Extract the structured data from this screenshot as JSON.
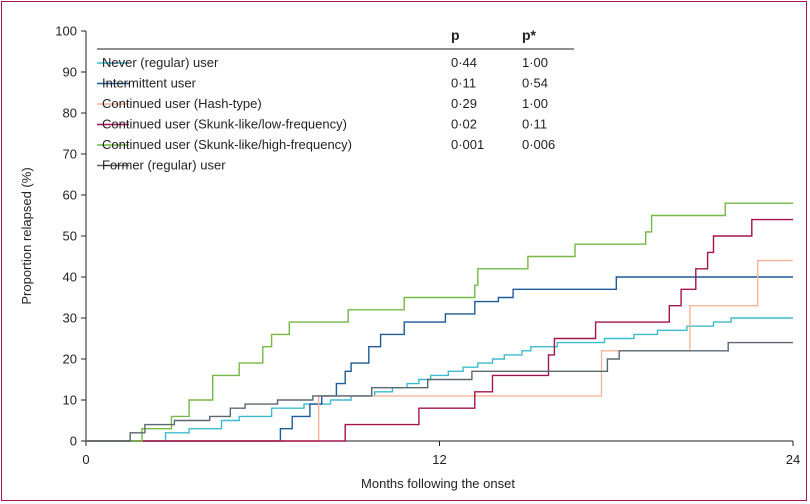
{
  "chart_data": {
    "type": "line",
    "step": true,
    "xlabel": "Months following the onset",
    "ylabel": "Proportion relapsed (%)",
    "xlim": [
      0,
      24
    ],
    "ylim": [
      0,
      100
    ],
    "xticks": [
      0,
      12,
      24
    ],
    "yticks": [
      0,
      10,
      20,
      30,
      40,
      50,
      60,
      70,
      80,
      90,
      100
    ],
    "legend_position": "top",
    "legend_columns": [
      "p",
      "p*"
    ],
    "frame_color": "#a8135f",
    "series": [
      {
        "name": "Never (regular) user",
        "color": "#3bbcd0",
        "p": "0·44",
        "p_star": "1·00",
        "points": [
          [
            0,
            0
          ],
          [
            2.7,
            0
          ],
          [
            2.7,
            2
          ],
          [
            3.5,
            2
          ],
          [
            3.5,
            3
          ],
          [
            4.6,
            3
          ],
          [
            4.6,
            5
          ],
          [
            5.2,
            5
          ],
          [
            5.2,
            6
          ],
          [
            6.3,
            6
          ],
          [
            6.3,
            8
          ],
          [
            7.4,
            8
          ],
          [
            7.4,
            9
          ],
          [
            8.3,
            9
          ],
          [
            8.3,
            10
          ],
          [
            9.0,
            10
          ],
          [
            9.0,
            11
          ],
          [
            9.8,
            11
          ],
          [
            9.8,
            12
          ],
          [
            10.4,
            12
          ],
          [
            10.4,
            13
          ],
          [
            10.9,
            13
          ],
          [
            10.9,
            14
          ],
          [
            11.3,
            14
          ],
          [
            11.3,
            15
          ],
          [
            11.7,
            15
          ],
          [
            11.7,
            16
          ],
          [
            12.3,
            16
          ],
          [
            12.3,
            17
          ],
          [
            12.8,
            17
          ],
          [
            12.8,
            18
          ],
          [
            13.3,
            18
          ],
          [
            13.3,
            19
          ],
          [
            13.8,
            19
          ],
          [
            13.8,
            20
          ],
          [
            14.2,
            20
          ],
          [
            14.2,
            21
          ],
          [
            14.8,
            21
          ],
          [
            14.8,
            22
          ],
          [
            15.1,
            22
          ],
          [
            15.1,
            23
          ],
          [
            16.0,
            23
          ],
          [
            16.0,
            24
          ],
          [
            17.6,
            24
          ],
          [
            17.6,
            25
          ],
          [
            18.6,
            25
          ],
          [
            18.6,
            26
          ],
          [
            19.4,
            26
          ],
          [
            19.4,
            27
          ],
          [
            20.4,
            27
          ],
          [
            20.4,
            28
          ],
          [
            21.3,
            28
          ],
          [
            21.3,
            29
          ],
          [
            21.9,
            29
          ],
          [
            21.9,
            30
          ],
          [
            24,
            30
          ]
        ]
      },
      {
        "name": "Intermittent user",
        "color": "#1c5a99",
        "p": "0·11",
        "p_star": "0·54",
        "points": [
          [
            0,
            0
          ],
          [
            6.6,
            0
          ],
          [
            6.6,
            3
          ],
          [
            7.0,
            3
          ],
          [
            7.0,
            6
          ],
          [
            7.6,
            6
          ],
          [
            7.6,
            9
          ],
          [
            8.0,
            9
          ],
          [
            8.0,
            11
          ],
          [
            8.5,
            11
          ],
          [
            8.5,
            14
          ],
          [
            8.8,
            14
          ],
          [
            8.8,
            17
          ],
          [
            9.0,
            17
          ],
          [
            9.0,
            19
          ],
          [
            9.6,
            19
          ],
          [
            9.6,
            23
          ],
          [
            10.0,
            23
          ],
          [
            10.0,
            26
          ],
          [
            10.8,
            26
          ],
          [
            10.8,
            29
          ],
          [
            12.2,
            29
          ],
          [
            12.2,
            31
          ],
          [
            13.2,
            31
          ],
          [
            13.2,
            34
          ],
          [
            14.0,
            34
          ],
          [
            14.0,
            35
          ],
          [
            14.5,
            35
          ],
          [
            14.5,
            37
          ],
          [
            18.0,
            37
          ],
          [
            18.0,
            40
          ],
          [
            24,
            40
          ]
        ]
      },
      {
        "name": "Continued user (Hash-type)",
        "color": "#f7b39b",
        "p": "0·29",
        "p_star": "1·00",
        "points": [
          [
            0,
            0
          ],
          [
            7.9,
            0
          ],
          [
            7.9,
            11
          ],
          [
            17.5,
            11
          ],
          [
            17.5,
            22
          ],
          [
            20.5,
            22
          ],
          [
            20.5,
            33
          ],
          [
            22.8,
            33
          ],
          [
            22.8,
            44
          ],
          [
            24,
            44
          ]
        ]
      },
      {
        "name": "Continued user (Skunk-like/low-frequency)",
        "color": "#a4134e",
        "p": "0·02",
        "p_star": "0·11",
        "points": [
          [
            0,
            0
          ],
          [
            8.8,
            0
          ],
          [
            8.8,
            4
          ],
          [
            11.3,
            4
          ],
          [
            11.3,
            8
          ],
          [
            13.2,
            8
          ],
          [
            13.2,
            12
          ],
          [
            13.8,
            12
          ],
          [
            13.8,
            16
          ],
          [
            15.7,
            16
          ],
          [
            15.7,
            21
          ],
          [
            15.9,
            21
          ],
          [
            15.9,
            25
          ],
          [
            17.3,
            25
          ],
          [
            17.3,
            29
          ],
          [
            19.8,
            29
          ],
          [
            19.8,
            33
          ],
          [
            20.2,
            33
          ],
          [
            20.2,
            37
          ],
          [
            20.7,
            37
          ],
          [
            20.7,
            42
          ],
          [
            21.1,
            42
          ],
          [
            21.1,
            46
          ],
          [
            21.3,
            46
          ],
          [
            21.3,
            50
          ],
          [
            22.6,
            50
          ],
          [
            22.6,
            54
          ],
          [
            24,
            54
          ]
        ]
      },
      {
        "name": "Continued user (Skunk-like/high-frequency)",
        "color": "#74b944",
        "p": "0·001",
        "p_star": "0·006",
        "points": [
          [
            0,
            0
          ],
          [
            1.9,
            0
          ],
          [
            1.9,
            3
          ],
          [
            2.9,
            3
          ],
          [
            2.9,
            6
          ],
          [
            3.5,
            6
          ],
          [
            3.5,
            10
          ],
          [
            4.3,
            10
          ],
          [
            4.3,
            16
          ],
          [
            5.2,
            16
          ],
          [
            5.2,
            19
          ],
          [
            6.0,
            19
          ],
          [
            6.0,
            23
          ],
          [
            6.3,
            23
          ],
          [
            6.3,
            26
          ],
          [
            6.9,
            26
          ],
          [
            6.9,
            29
          ],
          [
            8.9,
            29
          ],
          [
            8.9,
            32
          ],
          [
            10.8,
            32
          ],
          [
            10.8,
            35
          ],
          [
            13.2,
            35
          ],
          [
            13.2,
            38
          ],
          [
            13.3,
            38
          ],
          [
            13.3,
            42
          ],
          [
            15.0,
            42
          ],
          [
            15.0,
            45
          ],
          [
            16.6,
            45
          ],
          [
            16.6,
            48
          ],
          [
            19.0,
            48
          ],
          [
            19.0,
            51
          ],
          [
            19.2,
            51
          ],
          [
            19.2,
            55
          ],
          [
            21.7,
            55
          ],
          [
            21.7,
            58
          ],
          [
            24,
            58
          ]
        ]
      },
      {
        "name": "Former (regular) user",
        "color": "#5b6770",
        "p": "",
        "p_star": "",
        "points": [
          [
            0,
            0
          ],
          [
            1.5,
            0
          ],
          [
            1.5,
            2
          ],
          [
            2.0,
            2
          ],
          [
            2.0,
            4
          ],
          [
            3.0,
            4
          ],
          [
            3.0,
            5
          ],
          [
            4.2,
            5
          ],
          [
            4.2,
            6
          ],
          [
            4.9,
            6
          ],
          [
            4.9,
            8
          ],
          [
            5.4,
            8
          ],
          [
            5.4,
            9
          ],
          [
            6.5,
            9
          ],
          [
            6.5,
            10
          ],
          [
            7.7,
            10
          ],
          [
            7.7,
            11
          ],
          [
            9.7,
            11
          ],
          [
            9.7,
            13
          ],
          [
            11.6,
            13
          ],
          [
            11.6,
            15
          ],
          [
            13.1,
            15
          ],
          [
            13.1,
            17
          ],
          [
            17.7,
            17
          ],
          [
            17.7,
            20
          ],
          [
            18.1,
            20
          ],
          [
            18.1,
            22
          ],
          [
            21.8,
            22
          ],
          [
            21.8,
            24
          ],
          [
            24,
            24
          ]
        ]
      }
    ]
  }
}
